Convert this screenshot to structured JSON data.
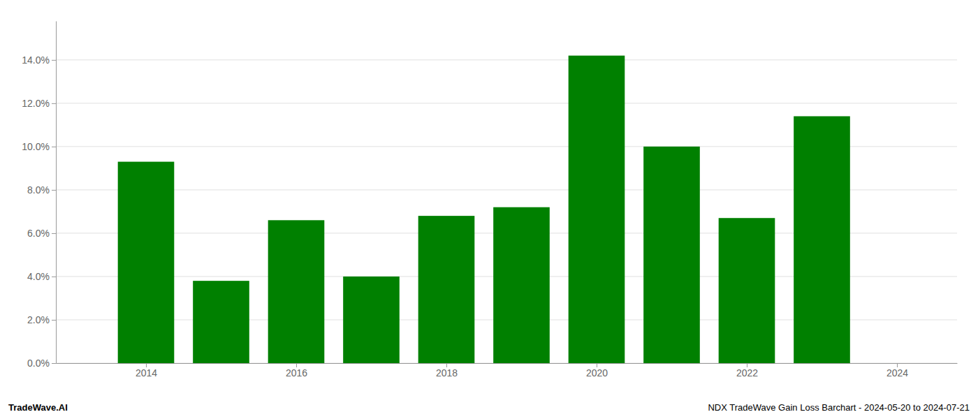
{
  "chart_data": {
    "type": "bar",
    "x": [
      2014,
      2015,
      2016,
      2017,
      2018,
      2019,
      2020,
      2021,
      2022,
      2023
    ],
    "values": [
      0.093,
      0.038,
      0.066,
      0.04,
      0.068,
      0.072,
      0.142,
      0.1,
      0.067,
      0.114
    ],
    "color": "#008000",
    "xlim": [
      2012.8,
      2024.8
    ],
    "xticks": [
      2014,
      2016,
      2018,
      2020,
      2022,
      2024
    ],
    "ylim": [
      0,
      0.158
    ],
    "yticks": [
      {
        "value": 0.0,
        "label": "0.0%"
      },
      {
        "value": 0.02,
        "label": "2.0%"
      },
      {
        "value": 0.04,
        "label": "4.0%"
      },
      {
        "value": 0.06,
        "label": "6.0%"
      },
      {
        "value": 0.08,
        "label": "8.0%"
      },
      {
        "value": 0.1,
        "label": "10.0%"
      },
      {
        "value": 0.12,
        "label": "12.0%"
      },
      {
        "value": 0.14,
        "label": "14.0%"
      }
    ],
    "grid": true,
    "annotations": [
      "TradeWave.AI",
      "NDX TradeWave Gain Loss Barchart - 2024-05-20 to 2024-07-21"
    ]
  }
}
